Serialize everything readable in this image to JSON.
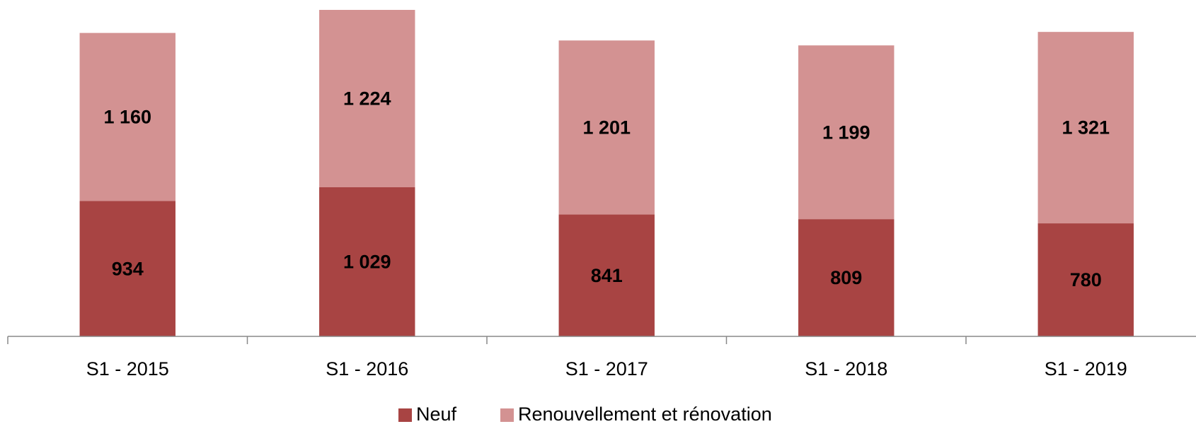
{
  "chart_data": {
    "type": "stacked_bar",
    "categories": [
      "S1 - 2015",
      "S1 - 2016",
      "S1 - 2017",
      "S1 - 2018",
      "S1 - 2019"
    ],
    "series": [
      {
        "name": "Neuf",
        "color": "#a84443",
        "values": [
          934,
          1029,
          841,
          809,
          780
        ],
        "value_labels": [
          "934",
          "1 029",
          "841",
          "809",
          "780"
        ]
      },
      {
        "name": "Renouvellement et rénovation",
        "color": "#d39292",
        "values": [
          1160,
          1224,
          1201,
          1199,
          1321
        ],
        "value_labels": [
          "1 160",
          "1 224",
          "1 201",
          "1 199",
          "1 321"
        ]
      }
    ],
    "legend": "bottom"
  }
}
